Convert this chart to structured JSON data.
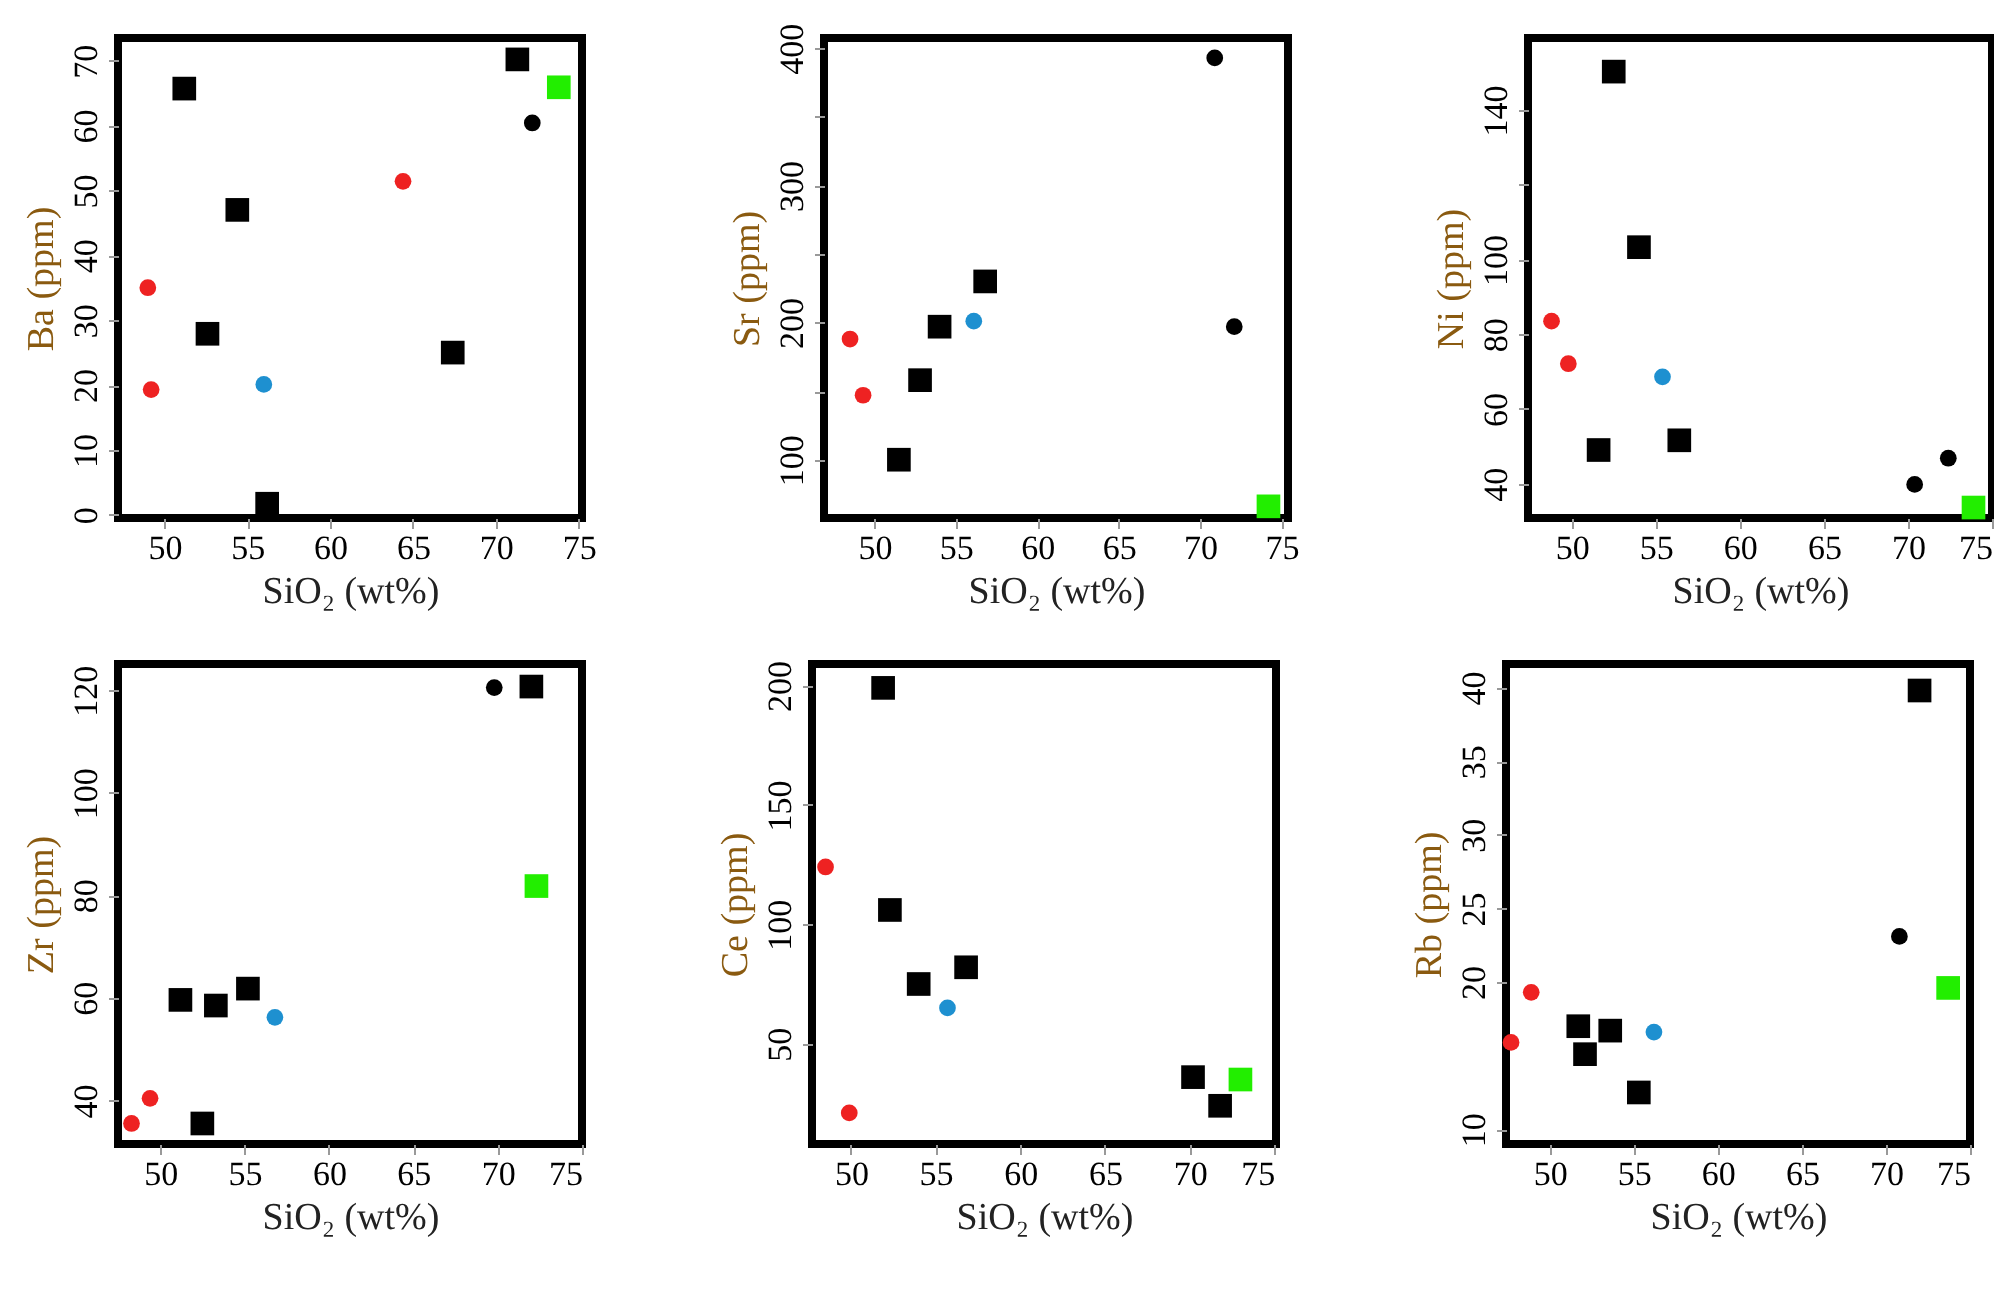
{
  "chart_data": [
    {
      "type": "scatter",
      "xlabel": "SiO₂ (wt%)",
      "ylabel": "Ba (ppm)",
      "xlim": [
        47.2,
        75.2
      ],
      "ylim": [
        -0.5,
        73.5
      ],
      "xticks": [
        50,
        55,
        60,
        65,
        70,
        75
      ],
      "yticks": [
        0,
        10,
        20,
        30,
        40,
        50,
        60,
        70
      ],
      "series": [
        {
          "color": "#000000",
          "marker": "square",
          "x": [
            51.2,
            54.4,
            52.6,
            56.2,
            67.4,
            71.3
          ],
          "values": [
            65.7,
            47.0,
            27.9,
            1.7,
            25.0,
            70.2
          ]
        },
        {
          "color": "#000000",
          "marker": "circle",
          "x": [
            72.2
          ],
          "values": [
            60.4
          ]
        },
        {
          "color": "#ee2222",
          "marker": "circle",
          "x": [
            49.0,
            49.2,
            64.4
          ],
          "values": [
            35.0,
            19.3,
            51.4
          ]
        },
        {
          "color": "#1e90d0",
          "marker": "circle",
          "x": [
            56.0
          ],
          "values": [
            20.1
          ]
        },
        {
          "color": "#22ee00",
          "marker": "square",
          "x": [
            73.8
          ],
          "values": [
            65.9
          ]
        }
      ]
    },
    {
      "type": "scatter",
      "xlabel": "SiO₂ (wt%)",
      "ylabel": "Sr (ppm)",
      "xlim": [
        46.9,
        75.4
      ],
      "ylim": [
        57.5,
        407.5
      ],
      "xticks": [
        50,
        55,
        60,
        65,
        70,
        75
      ],
      "yticks": [
        100,
        {
          "value": 150,
          "label": null
        },
        200,
        {
          "value": 250,
          "label": null
        },
        300,
        {
          "value": 350,
          "label": null
        },
        400
      ],
      "series": [
        {
          "color": "#000000",
          "marker": "square",
          "x": [
            56.8,
            54.0,
            52.8,
            51.5
          ],
          "values": [
            230,
            197,
            158,
            100
          ]
        },
        {
          "color": "#000000",
          "marker": "circle",
          "x": [
            70.9,
            72.1
          ],
          "values": [
            393,
            197
          ]
        },
        {
          "color": "#ee2222",
          "marker": "circle",
          "x": [
            48.5,
            49.3
          ],
          "values": [
            188,
            147
          ]
        },
        {
          "color": "#1e90d0",
          "marker": "circle",
          "x": [
            56.1
          ],
          "values": [
            201
          ]
        },
        {
          "color": "#22ee00",
          "marker": "square",
          "x": [
            74.2
          ],
          "values": [
            66
          ]
        }
      ]
    },
    {
      "type": "scatter",
      "xlabel": "SiO₂ (wt%)",
      "ylabel": "Ni (ppm)",
      "xlim": [
        47.4,
        75
      ],
      "ylim": [
        30.8,
        159.3
      ],
      "xticks": [
        50,
        55,
        60,
        65,
        70,
        75
      ],
      "yticks": [
        40,
        60,
        80,
        100,
        {
          "value": 120,
          "label": null
        },
        140
      ],
      "series": [
        {
          "color": "#000000",
          "marker": "square",
          "x": [
            52.5,
            54.0,
            51.6,
            56.4
          ],
          "values": [
            150.3,
            103.3,
            49.0,
            51.6
          ]
        },
        {
          "color": "#000000",
          "marker": "circle",
          "x": [
            70.4,
            72.4
          ],
          "values": [
            39.8,
            46.8
          ]
        },
        {
          "color": "#ee2222",
          "marker": "circle",
          "x": [
            48.8,
            49.8
          ],
          "values": [
            83.5,
            72.1
          ]
        },
        {
          "color": "#1e90d0",
          "marker": "circle",
          "x": [
            55.4
          ],
          "values": [
            68.6
          ]
        },
        {
          "color": "#22ee00",
          "marker": "square",
          "x": [
            73.9
          ],
          "values": [
            33.6
          ]
        }
      ]
    },
    {
      "type": "scatter",
      "xlabel": "SiO₂ (wt%)",
      "ylabel": "Zr (ppm)",
      "xlim": [
        47.5,
        75
      ],
      "ylim": [
        31.5,
        125.1
      ],
      "xticks": [
        50,
        55,
        60,
        65,
        70,
        75
      ],
      "yticks": [
        40,
        60,
        80,
        100,
        120
      ],
      "series": [
        {
          "color": "#000000",
          "marker": "square",
          "x": [
            51.2,
            53.3,
            55.2,
            52.5,
            72.0
          ],
          "values": [
            59.6,
            58.5,
            61.8,
            35.5,
            120.7
          ]
        },
        {
          "color": "#000000",
          "marker": "circle",
          "x": [
            69.8
          ],
          "values": [
            120.5
          ]
        },
        {
          "color": "#ee2222",
          "marker": "circle",
          "x": [
            49.4,
            48.3
          ],
          "values": [
            40.4,
            35.5
          ]
        },
        {
          "color": "#1e90d0",
          "marker": "circle",
          "x": [
            56.8
          ],
          "values": [
            56.2
          ]
        },
        {
          "color": "#22ee00",
          "marker": "square",
          "x": [
            72.3
          ],
          "values": [
            81.8
          ]
        }
      ]
    },
    {
      "type": "scatter",
      "xlabel": "SiO₂ (wt%)",
      "ylabel": "Ce (ppm)",
      "xlim": [
        47.7,
        75.1
      ],
      "ylim": [
        8,
        209
      ],
      "xticks": [
        50,
        55,
        60,
        65,
        70,
        75
      ],
      "yticks": [
        50,
        100,
        150,
        200
      ],
      "series": [
        {
          "color": "#000000",
          "marker": "square",
          "x": [
            51.9,
            52.3,
            54.0,
            56.8,
            70.2,
            71.8
          ],
          "values": [
            199,
            106,
            75,
            82,
            36,
            24
          ]
        },
        {
          "color": "#ee2222",
          "marker": "circle",
          "x": [
            48.5,
            49.9
          ],
          "values": [
            124,
            21
          ]
        },
        {
          "color": "#1e90d0",
          "marker": "circle",
          "x": [
            55.7
          ],
          "values": [
            65
          ]
        },
        {
          "color": "#22ee00",
          "marker": "square",
          "x": [
            73.0
          ],
          "values": [
            35
          ]
        }
      ]
    },
    {
      "type": "scatter",
      "xlabel": "SiO₂ (wt%)",
      "ylabel": "Rb (ppm)",
      "xlim": [
        47.4,
        75
      ],
      "ylim": [
        9,
        41.6
      ],
      "xticks": [
        50,
        55,
        60,
        65,
        70,
        75
      ],
      "yticks": [
        10,
        20,
        25,
        30,
        35,
        40
      ],
      "series": [
        {
          "color": "#000000",
          "marker": "square",
          "x": [
            51.7,
            53.6,
            52.1,
            55.3,
            72.0
          ],
          "values": [
            17.0,
            16.7,
            15.1,
            12.5,
            39.8
          ]
        },
        {
          "color": "#000000",
          "marker": "circle",
          "x": [
            70.8
          ],
          "values": [
            23.1
          ]
        },
        {
          "color": "#ee2222",
          "marker": "circle",
          "x": [
            48.9,
            47.7
          ],
          "values": [
            19.3,
            15.9
          ]
        },
        {
          "color": "#1e90d0",
          "marker": "circle",
          "x": [
            56.2
          ],
          "values": [
            16.6
          ]
        },
        {
          "color": "#22ee00",
          "marker": "square",
          "x": [
            73.7
          ],
          "values": [
            19.6
          ]
        }
      ]
    }
  ]
}
